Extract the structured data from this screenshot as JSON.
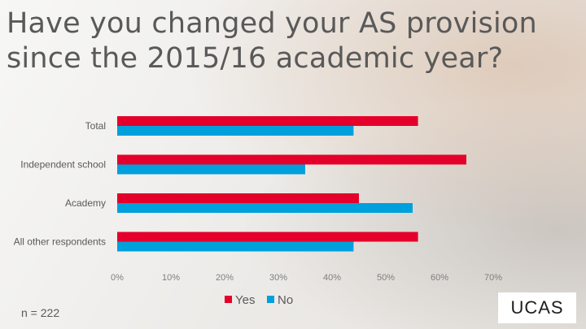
{
  "slide": {
    "title_line1": "Have you changed your AS provision",
    "title_line2": "since the 2015/16 academic year?",
    "sample_size": "n = 222",
    "logo_text": "UCAS"
  },
  "chart_data": {
    "type": "bar",
    "orientation": "horizontal",
    "categories": [
      "Total",
      "Independent school",
      "Academy",
      "All other respondents"
    ],
    "series": [
      {
        "name": "Yes",
        "color": "#e4002b",
        "values": [
          56,
          65,
          45,
          56
        ]
      },
      {
        "name": "No",
        "color": "#00a0dc",
        "values": [
          44,
          35,
          55,
          44
        ]
      }
    ],
    "xlim": [
      0,
      70
    ],
    "xticks": [
      "0%",
      "10%",
      "20%",
      "30%",
      "40%",
      "50%",
      "60%",
      "70%"
    ],
    "grid": false,
    "legend": "bottom"
  }
}
